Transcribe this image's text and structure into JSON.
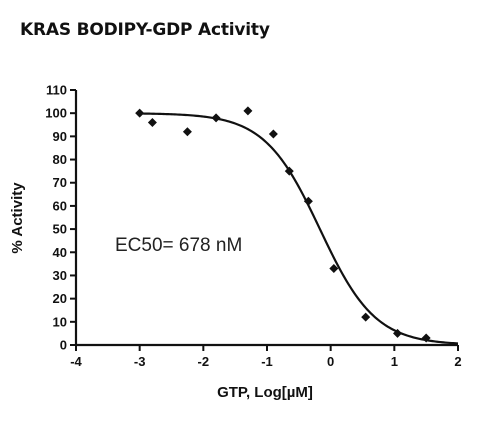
{
  "chart_data": {
    "type": "scatter",
    "title": "KRAS BODIPY-GDP Activity",
    "xlabel": "GTP, Log[µM]",
    "ylabel": "% Activity",
    "xlim": [
      -4,
      2
    ],
    "ylim": [
      0,
      110
    ],
    "x_ticks": [
      -4,
      -3,
      -2,
      -1,
      0,
      1,
      2
    ],
    "y_ticks": [
      0,
      10,
      20,
      30,
      40,
      50,
      60,
      70,
      80,
      90,
      100,
      110
    ],
    "series": [
      {
        "x": [
          -3.0,
          -2.8,
          -2.25,
          -1.8,
          -1.3,
          -0.9,
          -0.65,
          -0.35,
          0.05,
          0.55,
          1.05,
          1.5
        ],
        "y": [
          100,
          96,
          92,
          98,
          101,
          91,
          75,
          62,
          33,
          12,
          5,
          3
        ],
        "marker": "diamond",
        "color": "#111111"
      }
    ],
    "fit_curve": {
      "model": "sigmoidal dose-response",
      "top": 100,
      "bottom": 0,
      "log_ec50": -0.169,
      "hill_slope": -1.0,
      "color": "#111111"
    },
    "annotations": [
      "EC50= 678 nM"
    ],
    "grid": false,
    "legend": "none"
  }
}
